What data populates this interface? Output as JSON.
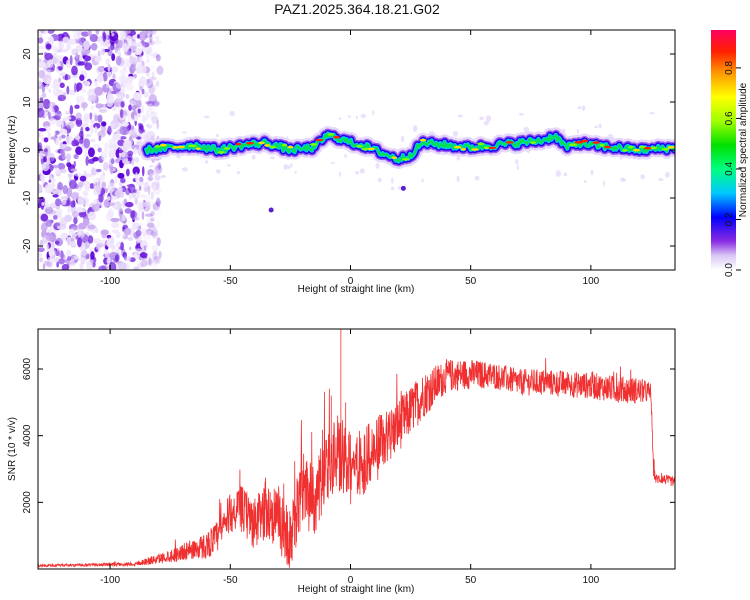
{
  "figure": {
    "title": "PAZ1.2025.364.18.21.G02"
  },
  "chart_data": [
    {
      "type": "heatmap",
      "title": "PAZ1.2025.364.18.21.G02",
      "xlabel": "Height of straight line (km)",
      "ylabel": "Frequency (Hz)",
      "xlim": [
        -130,
        135
      ],
      "ylim": [
        -25,
        25
      ],
      "xticks": [
        -100,
        -50,
        0,
        50,
        100
      ],
      "yticks": [
        -20,
        -10,
        0,
        10,
        20
      ],
      "noise_region_x": [
        -130,
        -85
      ],
      "signal_start_x": -85,
      "ridge": {
        "x": [
          -85,
          -75,
          -65,
          -55,
          -45,
          -35,
          -25,
          -15,
          -10,
          -5,
          0,
          5,
          10,
          15,
          20,
          25,
          30,
          40,
          50,
          60,
          70,
          80,
          85,
          90,
          95,
          100,
          110,
          120,
          135
        ],
        "freq": [
          0,
          0.5,
          1,
          0,
          1,
          1.5,
          0,
          0.5,
          3,
          2.5,
          1.5,
          1,
          0,
          -1,
          -2,
          -1,
          1.5,
          1,
          0.5,
          1,
          1.5,
          2,
          3,
          0.5,
          1.5,
          1,
          0.5,
          0,
          0.5
        ]
      },
      "isolated_points": [
        {
          "x": -33,
          "freq": -12.5
        },
        {
          "x": 22,
          "freq": -8
        }
      ],
      "colorbar": {
        "label": "Normalized spectral amplitude",
        "ticks": [
          0.0,
          0.2,
          0.4,
          0.6,
          0.8
        ],
        "tick_labels": [
          "0.0",
          "0.2",
          "0.4",
          "0.6",
          "0.8"
        ],
        "range": [
          0,
          0.95
        ]
      }
    },
    {
      "type": "line",
      "xlabel": "Height of straight line (km)",
      "ylabel": "SNR (10 * v/v)",
      "xlim": [
        -130,
        135
      ],
      "ylim": [
        0,
        7200
      ],
      "xticks": [
        -100,
        -50,
        0,
        50,
        100
      ],
      "yticks": [
        2000,
        4000,
        6000
      ],
      "series": [
        {
          "name": "SNR",
          "color": "#f03030",
          "x": [
            -130,
            -110,
            -90,
            -80,
            -70,
            -60,
            -55,
            -50,
            -45,
            -40,
            -35,
            -30,
            -25,
            -20,
            -15,
            -10,
            -5,
            0,
            10,
            20,
            30,
            40,
            50,
            60,
            70,
            80,
            90,
            100,
            110,
            120,
            125,
            126,
            127,
            130,
            135
          ],
          "y": [
            100,
            120,
            150,
            300,
            500,
            700,
            1000,
            1700,
            1800,
            1300,
            1800,
            1500,
            800,
            2500,
            2000,
            3000,
            3500,
            3000,
            3500,
            4300,
            5200,
            5800,
            5850,
            5800,
            5600,
            5600,
            5550,
            5500,
            5400,
            5350,
            5300,
            3000,
            2700,
            2700,
            2600
          ],
          "noise": [
            40,
            40,
            60,
            150,
            250,
            400,
            500,
            600,
            700,
            800,
            900,
            1000,
            900,
            1100,
            1100,
            1200,
            1200,
            1100,
            1000,
            800,
            700,
            500,
            450,
            400,
            400,
            400,
            400,
            400,
            400,
            400,
            300,
            200,
            150,
            150,
            150
          ],
          "spikes": [
            {
              "x": -4,
              "y": 7200
            },
            {
              "x": -2,
              "y": 5000
            },
            {
              "x": -8,
              "y": 5200
            }
          ]
        }
      ]
    }
  ]
}
